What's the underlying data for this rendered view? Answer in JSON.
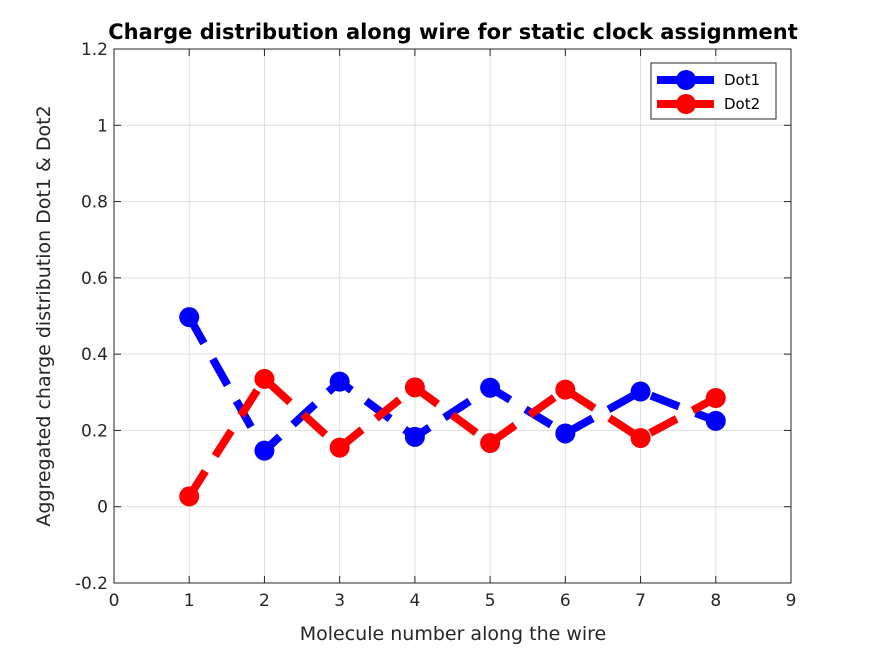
{
  "chart_data": {
    "type": "line",
    "title": "Charge distribution along wire for static clock assignment",
    "xlabel": "Molecule number along the wire",
    "ylabel": "Aggregated charge distribution Dot1 & Dot2",
    "xlim": [
      0,
      9
    ],
    "ylim": [
      -0.2,
      1.2
    ],
    "xticks": [
      0,
      1,
      2,
      3,
      4,
      5,
      6,
      7,
      8,
      9
    ],
    "yticks": [
      -0.2,
      0,
      0.2,
      0.4,
      0.6,
      0.8,
      1,
      1.2
    ],
    "xtick_labels": [
      "0",
      "1",
      "2",
      "3",
      "4",
      "5",
      "6",
      "7",
      "8",
      "9"
    ],
    "ytick_labels": [
      "-0.2",
      "0",
      "0.2",
      "0.4",
      "0.6",
      "0.8",
      "1",
      "1.2"
    ],
    "grid": true,
    "legend_position": "top-right",
    "x": [
      1,
      2,
      3,
      4,
      5,
      6,
      7,
      8
    ],
    "series": [
      {
        "name": "Dot1",
        "color": "#0000ff",
        "values": [
          0.497,
          0.147,
          0.328,
          0.183,
          0.312,
          0.192,
          0.302,
          0.225
        ]
      },
      {
        "name": "Dot2",
        "color": "#ff0000",
        "values": [
          0.027,
          0.335,
          0.155,
          0.313,
          0.167,
          0.307,
          0.18,
          0.285
        ]
      }
    ]
  }
}
